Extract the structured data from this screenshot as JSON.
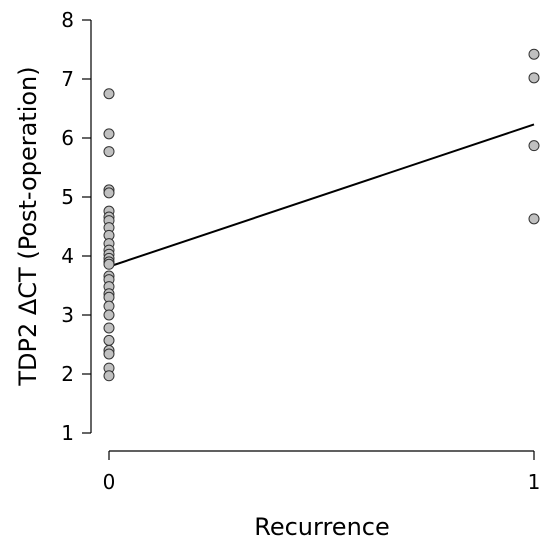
{
  "chart_data": {
    "type": "scatter",
    "xlabel": "Recurrence",
    "ylabel": "TDP2 ΔCT (Post-operation)",
    "xlim": [
      0,
      1
    ],
    "ylim": [
      1,
      8
    ],
    "x_ticks": [
      0,
      1
    ],
    "y_ticks": [
      1,
      2,
      3,
      4,
      5,
      6,
      7,
      8
    ],
    "grid": false,
    "series": [
      {
        "points": [
          {
            "x": 0,
            "y": 6.75
          },
          {
            "x": 0,
            "y": 6.07
          },
          {
            "x": 0,
            "y": 5.77
          },
          {
            "x": 0,
            "y": 5.12
          },
          {
            "x": 0,
            "y": 5.07
          },
          {
            "x": 0,
            "y": 4.76
          },
          {
            "x": 0,
            "y": 4.66
          },
          {
            "x": 0,
            "y": 4.6
          },
          {
            "x": 0,
            "y": 4.48
          },
          {
            "x": 0,
            "y": 4.35
          },
          {
            "x": 0,
            "y": 4.21
          },
          {
            "x": 0,
            "y": 4.1
          },
          {
            "x": 0,
            "y": 4.03
          },
          {
            "x": 0,
            "y": 3.96
          },
          {
            "x": 0,
            "y": 3.9
          },
          {
            "x": 0,
            "y": 3.86
          },
          {
            "x": 0,
            "y": 3.66
          },
          {
            "x": 0,
            "y": 3.6
          },
          {
            "x": 0,
            "y": 3.48
          },
          {
            "x": 0,
            "y": 3.36
          },
          {
            "x": 0,
            "y": 3.3
          },
          {
            "x": 0,
            "y": 3.15
          },
          {
            "x": 0,
            "y": 3.0
          },
          {
            "x": 0,
            "y": 2.78
          },
          {
            "x": 0,
            "y": 2.57
          },
          {
            "x": 0,
            "y": 2.4
          },
          {
            "x": 0,
            "y": 2.34
          },
          {
            "x": 0,
            "y": 2.1
          },
          {
            "x": 0,
            "y": 1.97
          },
          {
            "x": 1,
            "y": 7.42
          },
          {
            "x": 1,
            "y": 7.02
          },
          {
            "x": 1,
            "y": 5.87
          },
          {
            "x": 1,
            "y": 4.63
          }
        ]
      }
    ],
    "fit_line": {
      "x": [
        0,
        1
      ],
      "y": [
        3.82,
        6.23
      ]
    }
  }
}
